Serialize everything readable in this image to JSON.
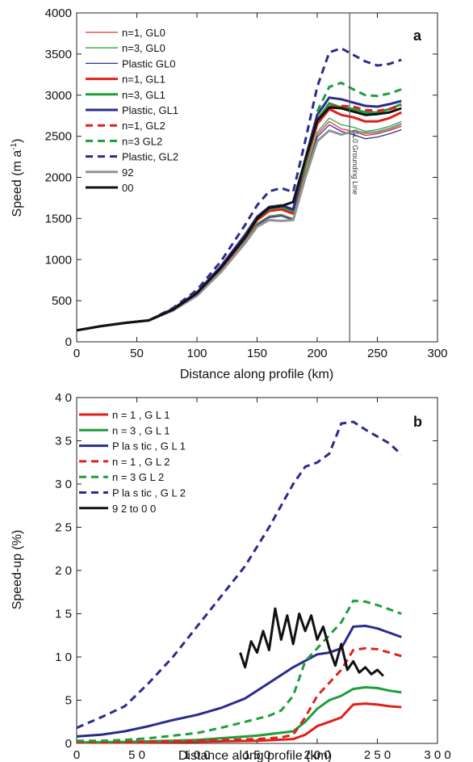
{
  "chart_data": [
    {
      "type": "line",
      "panel_label": "a",
      "xlabel": "Distance  along profile (km)",
      "ylabel": "Speed (m a",
      "ylabel_sup": "-1",
      "ylabel_close": ")",
      "xlim": [
        0,
        300
      ],
      "ylim": [
        0,
        4000
      ],
      "xticks": [
        "0",
        "50",
        "100",
        "150",
        "200",
        "250",
        "300"
      ],
      "yticks": [
        "0",
        "500",
        "1000",
        "1500",
        "2000",
        "2500",
        "3000",
        "3500",
        "4000"
      ],
      "legend_position": "top-left",
      "annotation": {
        "text": "GL0 Grounding Line",
        "x": 227
      },
      "series": [
        {
          "name": "n=1, GL0",
          "color": "#e8342a",
          "width": 1.3,
          "dash": "",
          "x": [
            0,
            20,
            40,
            60,
            80,
            100,
            120,
            140,
            150,
            160,
            170,
            180,
            190,
            200,
            210,
            220,
            230,
            240,
            250,
            260,
            270
          ],
          "y": [
            140,
            190,
            230,
            260,
            380,
            560,
            860,
            1220,
            1430,
            1520,
            1540,
            1490,
            2030,
            2520,
            2680,
            2590,
            2560,
            2510,
            2530,
            2570,
            2620
          ]
        },
        {
          "name": "n=3, GL0",
          "color": "#2ba84a",
          "width": 1.3,
          "dash": "",
          "x": [
            0,
            20,
            40,
            60,
            80,
            100,
            120,
            140,
            150,
            160,
            170,
            180,
            190,
            200,
            210,
            220,
            230,
            240,
            250,
            260,
            270
          ],
          "y": [
            140,
            190,
            230,
            260,
            380,
            570,
            870,
            1230,
            1440,
            1530,
            1550,
            1500,
            2050,
            2550,
            2720,
            2640,
            2610,
            2560,
            2580,
            2620,
            2680
          ]
        },
        {
          "name": "Plastic GL0",
          "color": "#2f2f9a",
          "width": 1.3,
          "dash": "",
          "x": [
            0,
            20,
            40,
            60,
            80,
            100,
            120,
            140,
            150,
            160,
            170,
            180,
            190,
            200,
            210,
            220,
            230,
            240,
            250,
            260,
            270
          ],
          "y": [
            140,
            190,
            230,
            260,
            380,
            560,
            850,
            1210,
            1420,
            1510,
            1530,
            1480,
            2010,
            2490,
            2640,
            2560,
            2520,
            2470,
            2490,
            2530,
            2580
          ]
        },
        {
          "name": "n=1, GL1",
          "color": "#e0211b",
          "width": 3,
          "dash": "",
          "x": [
            0,
            20,
            40,
            60,
            80,
            100,
            120,
            140,
            150,
            160,
            170,
            180,
            190,
            200,
            210,
            220,
            230,
            240,
            250,
            260,
            270
          ],
          "y": [
            140,
            190,
            230,
            260,
            390,
            580,
            890,
            1260,
            1480,
            1590,
            1610,
            1560,
            2140,
            2650,
            2830,
            2760,
            2730,
            2680,
            2680,
            2720,
            2790
          ]
        },
        {
          "name": "n=3, GL1",
          "color": "#1e9e3c",
          "width": 3,
          "dash": "",
          "x": [
            0,
            20,
            40,
            60,
            80,
            100,
            120,
            140,
            150,
            160,
            170,
            180,
            190,
            200,
            210,
            220,
            230,
            240,
            250,
            260,
            270
          ],
          "y": [
            140,
            190,
            230,
            260,
            390,
            590,
            910,
            1280,
            1500,
            1620,
            1640,
            1590,
            2180,
            2700,
            2900,
            2850,
            2830,
            2790,
            2790,
            2830,
            2890
          ]
        },
        {
          "name": "Plastic, GL1",
          "color": "#2b2b8e",
          "width": 3,
          "dash": "",
          "x": [
            0,
            20,
            40,
            60,
            80,
            100,
            120,
            140,
            150,
            160,
            170,
            180,
            190,
            200,
            210,
            220,
            230,
            240,
            250,
            260,
            270
          ],
          "y": [
            140,
            190,
            230,
            260,
            400,
            600,
            920,
            1300,
            1520,
            1640,
            1660,
            1610,
            2220,
            2760,
            2970,
            2950,
            2910,
            2870,
            2860,
            2890,
            2930
          ]
        },
        {
          "name": "n=1, GL2",
          "color": "#e0211b",
          "width": 3,
          "dash": "9,6",
          "x": [
            210,
            220,
            230,
            240,
            250,
            260,
            270
          ],
          "y": [
            2860,
            2870,
            2860,
            2820,
            2810,
            2830,
            2870
          ]
        },
        {
          "name": "n=3 GL2",
          "color": "#1e9e3c",
          "width": 3,
          "dash": "9,6",
          "x": [
            200,
            210,
            220,
            230,
            240,
            250,
            260,
            270
          ],
          "y": [
            2800,
            3100,
            3150,
            3070,
            3000,
            2990,
            3020,
            3070
          ]
        },
        {
          "name": "Plastic, GL2",
          "color": "#2b2b8e",
          "width": 3,
          "dash": "9,6",
          "x": [
            0,
            20,
            40,
            60,
            80,
            100,
            120,
            140,
            150,
            160,
            170,
            180,
            190,
            200,
            210,
            220,
            230,
            240,
            250,
            260,
            270
          ],
          "y": [
            140,
            190,
            230,
            260,
            410,
            630,
            980,
            1420,
            1660,
            1830,
            1870,
            1820,
            2440,
            3100,
            3520,
            3570,
            3490,
            3410,
            3360,
            3380,
            3430
          ]
        },
        {
          "name": "92",
          "color": "#939393",
          "width": 3,
          "dash": "",
          "x": [
            0,
            20,
            40,
            60,
            80,
            100,
            120,
            140,
            150,
            160,
            170,
            180,
            190,
            200,
            210,
            220,
            230,
            240,
            250,
            260,
            270
          ],
          "y": [
            140,
            190,
            230,
            260,
            380,
            560,
            850,
            1200,
            1400,
            1480,
            1470,
            1480,
            1990,
            2440,
            2570,
            2520,
            2560,
            2540,
            2550,
            2590,
            2650
          ]
        },
        {
          "name": "00",
          "color": "#111111",
          "width": 3,
          "dash": "",
          "x": [
            0,
            20,
            40,
            60,
            80,
            100,
            120,
            140,
            150,
            160,
            170,
            180,
            190,
            200,
            210,
            220,
            230,
            240,
            250,
            260,
            270
          ],
          "y": [
            140,
            190,
            230,
            260,
            390,
            590,
            900,
            1270,
            1500,
            1630,
            1650,
            1700,
            2210,
            2690,
            2850,
            2840,
            2800,
            2760,
            2770,
            2790,
            2840
          ]
        }
      ]
    },
    {
      "type": "line",
      "panel_label": "b",
      "xlabel": "Distance  along profile (km)",
      "ylabel": "Speed-up (%)",
      "xlim": [
        0,
        300
      ],
      "ylim": [
        0,
        40
      ],
      "xticks": [
        "0",
        "5 0",
        "1 0 0",
        "1 5 0",
        "2 0 0",
        "2 5 0",
        "3 0 0"
      ],
      "yticks": [
        "0",
        "5",
        "1 0",
        "1 5",
        "2 0",
        "2 5",
        "3 0",
        "3 5",
        "4 0"
      ],
      "legend_position": "top-left",
      "series": [
        {
          "name": "n = 1 , G  L 1",
          "color": "#e0211b",
          "width": 3,
          "dash": "",
          "x": [
            0,
            50,
            100,
            150,
            180,
            190,
            200,
            210,
            220,
            230,
            240,
            250,
            260,
            270
          ],
          "y": [
            0.1,
            0.1,
            0.2,
            0.3,
            0.5,
            1.0,
            2.0,
            2.5,
            3.0,
            4.5,
            4.6,
            4.5,
            4.3,
            4.2
          ]
        },
        {
          "name": "n = 3 , G  L 1",
          "color": "#1e9e3c",
          "width": 3,
          "dash": "",
          "x": [
            0,
            50,
            100,
            150,
            180,
            190,
            200,
            210,
            220,
            230,
            240,
            250,
            260,
            270
          ],
          "y": [
            0.1,
            0.2,
            0.4,
            0.9,
            1.4,
            2.5,
            4.0,
            5.0,
            5.5,
            6.3,
            6.5,
            6.4,
            6.1,
            5.9
          ]
        },
        {
          "name": "P la s tic , G  L 1",
          "color": "#2b2b8e",
          "width": 3,
          "dash": "",
          "x": [
            0,
            20,
            40,
            60,
            80,
            100,
            120,
            140,
            160,
            180,
            200,
            210,
            220,
            230,
            240,
            250,
            260,
            270
          ],
          "y": [
            0.8,
            1.0,
            1.4,
            2.0,
            2.7,
            3.3,
            4.1,
            5.2,
            7.0,
            8.8,
            10.3,
            10.5,
            11.0,
            13.5,
            13.6,
            13.3,
            12.8,
            12.3
          ]
        },
        {
          "name": "n = 1 , G  L 2",
          "color": "#e0211b",
          "width": 3,
          "dash": "9,6",
          "x": [
            0,
            50,
            100,
            150,
            170,
            180,
            190,
            200,
            210,
            220,
            230,
            240,
            250,
            260,
            270
          ],
          "y": [
            0.1,
            0.2,
            0.3,
            0.5,
            0.7,
            1.0,
            3.0,
            5.5,
            7.0,
            8.5,
            10.8,
            11.0,
            10.9,
            10.5,
            10.1
          ]
        },
        {
          "name": "n = 3  G  L 2",
          "color": "#1e9e3c",
          "width": 3,
          "dash": "9,6",
          "x": [
            0,
            20,
            40,
            60,
            80,
            100,
            120,
            140,
            160,
            170,
            180,
            190,
            200,
            210,
            220,
            230,
            240,
            250,
            260,
            270
          ],
          "y": [
            0.3,
            0.3,
            0.4,
            0.6,
            0.9,
            1.2,
            1.8,
            2.5,
            3.2,
            3.8,
            5.5,
            9.5,
            11.0,
            12.5,
            14.0,
            16.5,
            16.4,
            16.0,
            15.5,
            15.0
          ]
        },
        {
          "name": "P la s tic , G  L 2",
          "color": "#2b2b8e",
          "width": 3,
          "dash": "9,6",
          "x": [
            0,
            20,
            40,
            60,
            80,
            100,
            120,
            140,
            160,
            180,
            190,
            200,
            210,
            220,
            230,
            240,
            250,
            260,
            270
          ],
          "y": [
            1.8,
            3.0,
            4.3,
            7.0,
            10.0,
            13.5,
            17.0,
            20.5,
            25.0,
            30.0,
            32.0,
            32.5,
            33.5,
            37.0,
            37.2,
            36.3,
            35.5,
            34.7,
            33.4
          ]
        },
        {
          "name": "9 2  to  0 0",
          "color": "#111111",
          "width": 3,
          "dash": "",
          "x": [
            136,
            140,
            145,
            150,
            155,
            160,
            165,
            170,
            175,
            180,
            185,
            190,
            195,
            200,
            205,
            210,
            215,
            220,
            225,
            230,
            235,
            240,
            245,
            250,
            255
          ],
          "y": [
            10.5,
            8.8,
            11.8,
            10.5,
            13.0,
            10.8,
            15.6,
            12.0,
            14.8,
            11.5,
            15.0,
            13.0,
            14.8,
            12.0,
            13.5,
            11.0,
            9.0,
            11.5,
            8.5,
            9.5,
            8.2,
            8.8,
            8.0,
            8.5,
            7.8
          ]
        }
      ]
    }
  ]
}
